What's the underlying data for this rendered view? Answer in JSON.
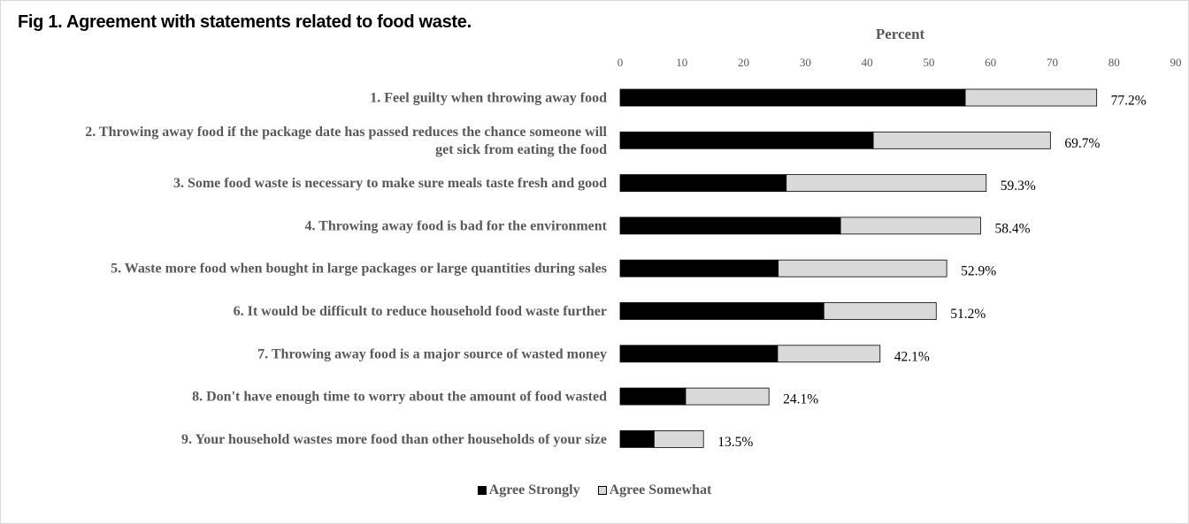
{
  "figure_title": "Fig 1.  Agreement with statements related to food waste.",
  "chart_data": {
    "type": "bar",
    "orientation": "horizontal",
    "stacked": true,
    "xlabel": "Percent",
    "xlim": [
      0,
      90
    ],
    "xticks": [
      0,
      10,
      20,
      30,
      40,
      50,
      60,
      70,
      80,
      90
    ],
    "grid": false,
    "legend_position": "bottom",
    "categories": [
      "1. Feel guilty when throwing away food",
      "2. Throwing away food if the package date has passed reduces the chance someone will get sick from eating the food",
      "3. Some food waste is necessary to make sure meals taste fresh and good",
      "4. Throwing away food is bad for the environment",
      "5. Waste more food when bought in large packages or large quantities during sales",
      "6. It would be difficult to reduce household food waste further",
      "7. Throwing away food is a major source of wasted money",
      "8. Don't have enough time to worry about the amount of food wasted",
      "9. Your household wastes more food than other households of your size"
    ],
    "category_lines": [
      [
        "1. Feel guilty when throwing away food"
      ],
      [
        "2. Throwing away food if the package date has passed reduces the chance someone will",
        "get sick from eating the food"
      ],
      [
        "3. Some food waste is necessary to make sure meals taste fresh and good"
      ],
      [
        "4. Throwing away food is bad for the environment"
      ],
      [
        "5. Waste more food when bought in large packages or large quantities during sales"
      ],
      [
        "6. It would be difficult to reduce household food waste further"
      ],
      [
        "7. Throwing away food is a major source of wasted money"
      ],
      [
        "8. Don't have enough time to worry about the amount of food wasted"
      ],
      [
        "9. Your household wastes more food than other households of your size"
      ]
    ],
    "series": [
      {
        "name": "Agree Strongly",
        "color": "#000000",
        "values": [
          55.9,
          41.0,
          26.9,
          35.7,
          25.6,
          33.0,
          25.5,
          10.6,
          5.5
        ]
      },
      {
        "name": "Agree Somewhat",
        "color": "#d9d9d9",
        "values": [
          21.3,
          28.7,
          32.4,
          22.7,
          27.3,
          18.2,
          16.6,
          13.5,
          8.0
        ]
      }
    ],
    "totals": [
      77.2,
      69.7,
      59.3,
      58.4,
      52.9,
      51.2,
      42.1,
      24.1,
      13.5
    ],
    "total_labels": [
      "77.2%",
      "69.7%",
      "59.3%",
      "58.4%",
      "52.9%",
      "51.2%",
      "42.1%",
      "24.1%",
      "13.5%"
    ]
  }
}
